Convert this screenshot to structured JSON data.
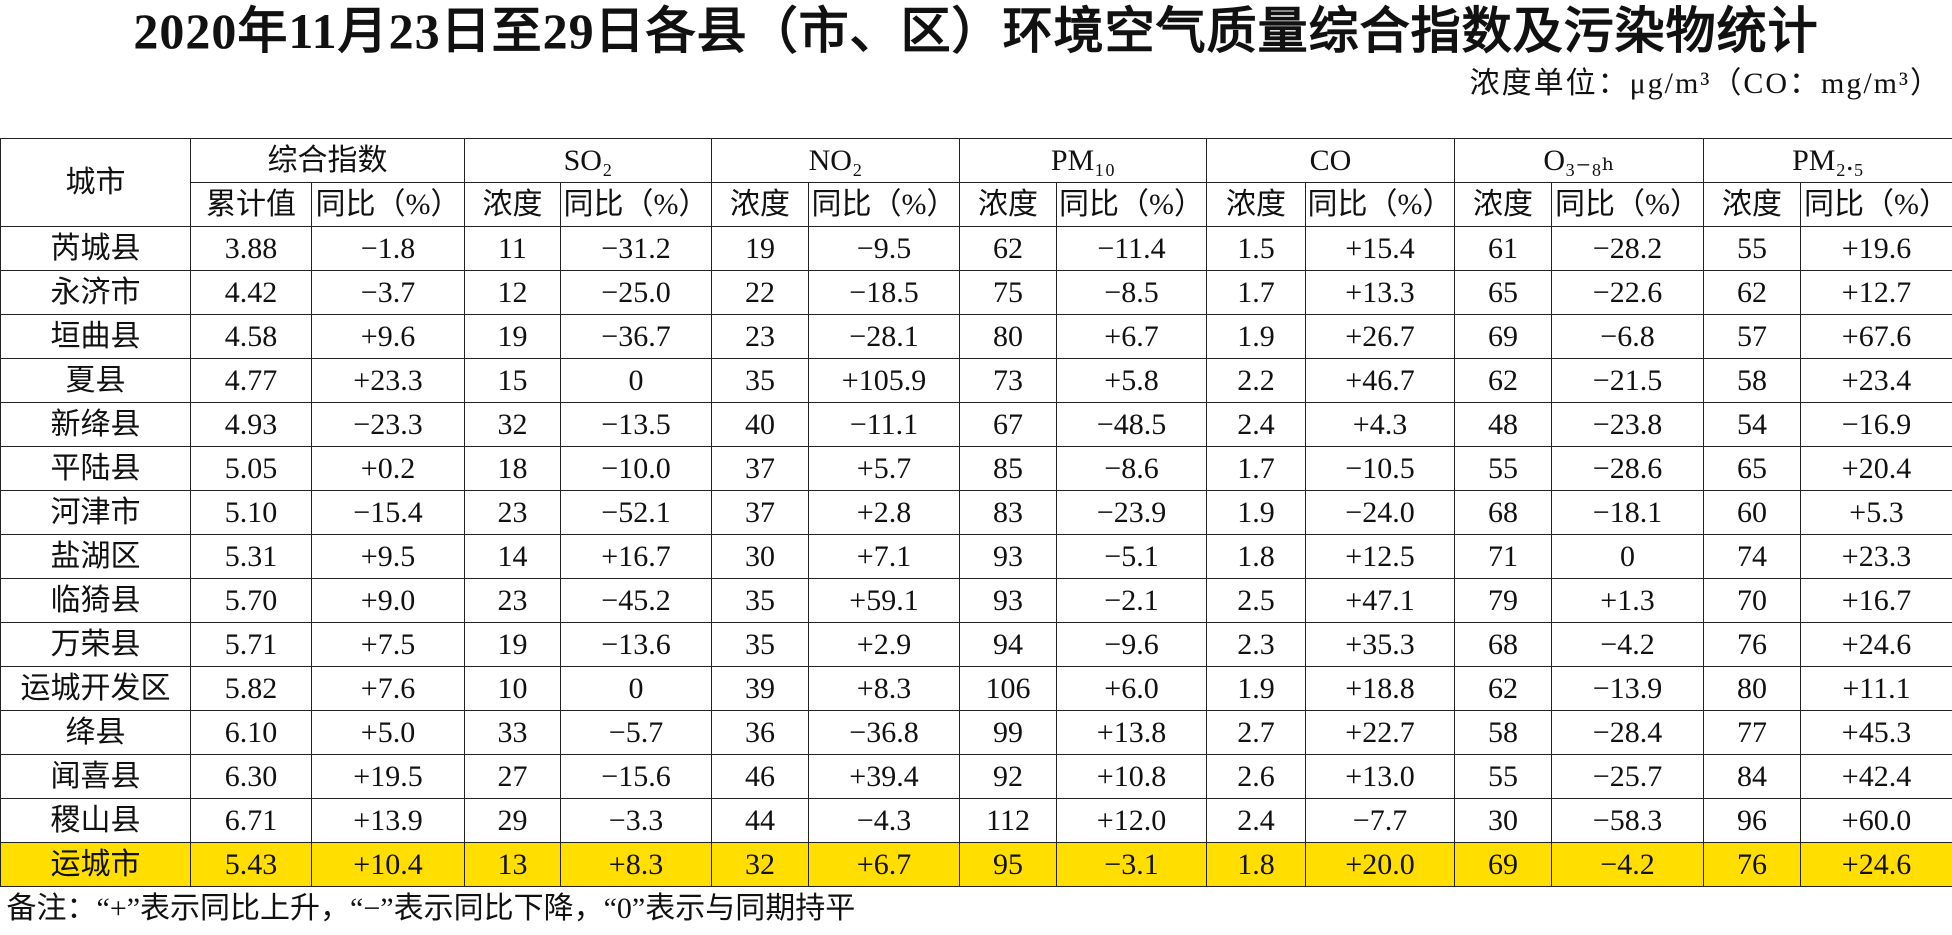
{
  "title": "2020年11月23日至29日各县（市、区）环境空气质量综合指数及污染物统计",
  "unit": "浓度单位：μg/m³（CO：mg/m³）",
  "table": {
    "corner": "城市",
    "groups": [
      {
        "label": "综合指数",
        "sub": [
          "累计值",
          "同比（%）"
        ]
      },
      {
        "label": "SO₂",
        "sub": [
          "浓度",
          "同比（%）"
        ]
      },
      {
        "label": "NO₂",
        "sub": [
          "浓度",
          "同比（%）"
        ]
      },
      {
        "label": "PM₁₀",
        "sub": [
          "浓度",
          "同比（%）"
        ]
      },
      {
        "label": "CO",
        "sub": [
          "浓度",
          "同比（%）"
        ]
      },
      {
        "label": "O₃₋₈ₕ",
        "sub": [
          "浓度",
          "同比（%）"
        ]
      },
      {
        "label": "PM₂.₅",
        "sub": [
          "浓度",
          "同比（%）"
        ]
      }
    ],
    "rows": [
      [
        "芮城县",
        "3.88",
        "−1.8",
        "11",
        "−31.2",
        "19",
        "−9.5",
        "62",
        "−11.4",
        "1.5",
        "+15.4",
        "61",
        "−28.2",
        "55",
        "+19.6"
      ],
      [
        "永济市",
        "4.42",
        "−3.7",
        "12",
        "−25.0",
        "22",
        "−18.5",
        "75",
        "−8.5",
        "1.7",
        "+13.3",
        "65",
        "−22.6",
        "62",
        "+12.7"
      ],
      [
        "垣曲县",
        "4.58",
        "+9.6",
        "19",
        "−36.7",
        "23",
        "−28.1",
        "80",
        "+6.7",
        "1.9",
        "+26.7",
        "69",
        "−6.8",
        "57",
        "+67.6"
      ],
      [
        "夏县",
        "4.77",
        "+23.3",
        "15",
        "0",
        "35",
        "+105.9",
        "73",
        "+5.8",
        "2.2",
        "+46.7",
        "62",
        "−21.5",
        "58",
        "+23.4"
      ],
      [
        "新绛县",
        "4.93",
        "−23.3",
        "32",
        "−13.5",
        "40",
        "−11.1",
        "67",
        "−48.5",
        "2.4",
        "+4.3",
        "48",
        "−23.8",
        "54",
        "−16.9"
      ],
      [
        "平陆县",
        "5.05",
        "+0.2",
        "18",
        "−10.0",
        "37",
        "+5.7",
        "85",
        "−8.6",
        "1.7",
        "−10.5",
        "55",
        "−28.6",
        "65",
        "+20.4"
      ],
      [
        "河津市",
        "5.10",
        "−15.4",
        "23",
        "−52.1",
        "37",
        "+2.8",
        "83",
        "−23.9",
        "1.9",
        "−24.0",
        "68",
        "−18.1",
        "60",
        "+5.3"
      ],
      [
        "盐湖区",
        "5.31",
        "+9.5",
        "14",
        "+16.7",
        "30",
        "+7.1",
        "93",
        "−5.1",
        "1.8",
        "+12.5",
        "71",
        "0",
        "74",
        "+23.3"
      ],
      [
        "临猗县",
        "5.70",
        "+9.0",
        "23",
        "−45.2",
        "35",
        "+59.1",
        "93",
        "−2.1",
        "2.5",
        "+47.1",
        "79",
        "+1.3",
        "70",
        "+16.7"
      ],
      [
        "万荣县",
        "5.71",
        "+7.5",
        "19",
        "−13.6",
        "35",
        "+2.9",
        "94",
        "−9.6",
        "2.3",
        "+35.3",
        "68",
        "−4.2",
        "76",
        "+24.6"
      ],
      [
        "运城开发区",
        "5.82",
        "+7.6",
        "10",
        "0",
        "39",
        "+8.3",
        "106",
        "+6.0",
        "1.9",
        "+18.8",
        "62",
        "−13.9",
        "80",
        "+11.1"
      ],
      [
        "绛县",
        "6.10",
        "+5.0",
        "33",
        "−5.7",
        "36",
        "−36.8",
        "99",
        "+13.8",
        "2.7",
        "+22.7",
        "58",
        "−28.4",
        "77",
        "+45.3"
      ],
      [
        "闻喜县",
        "6.30",
        "+19.5",
        "27",
        "−15.6",
        "46",
        "+39.4",
        "92",
        "+10.8",
        "2.6",
        "+13.0",
        "55",
        "−25.7",
        "84",
        "+42.4"
      ],
      [
        "稷山县",
        "6.71",
        "+13.9",
        "29",
        "−3.3",
        "44",
        "−4.3",
        "112",
        "+12.0",
        "2.4",
        "−7.7",
        "30",
        "−58.3",
        "96",
        "+60.0"
      ],
      [
        "运城市",
        "5.43",
        "+10.4",
        "13",
        "+8.3",
        "32",
        "+6.7",
        "95",
        "−3.1",
        "1.8",
        "+20.0",
        "69",
        "−4.2",
        "76",
        "+24.6"
      ]
    ],
    "note": "备注：“+”表示同比上升，“−”表示同比下降，“0”表示与同期持平"
  }
}
